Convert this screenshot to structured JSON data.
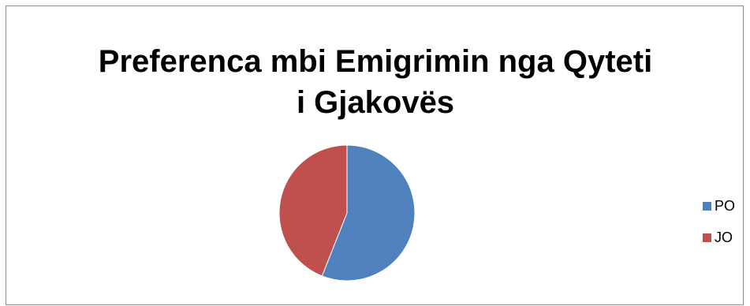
{
  "chart_data": {
    "type": "pie",
    "title_lines": [
      "Preferenca mbi Emigrimin nga Qyteti",
      "i Gjakovës"
    ],
    "categories": [
      "PO",
      "JO"
    ],
    "values": [
      56,
      44
    ],
    "colors": [
      "#4f81bd",
      "#c0504d"
    ],
    "legend_position": "right",
    "start_angle_deg": 0
  }
}
